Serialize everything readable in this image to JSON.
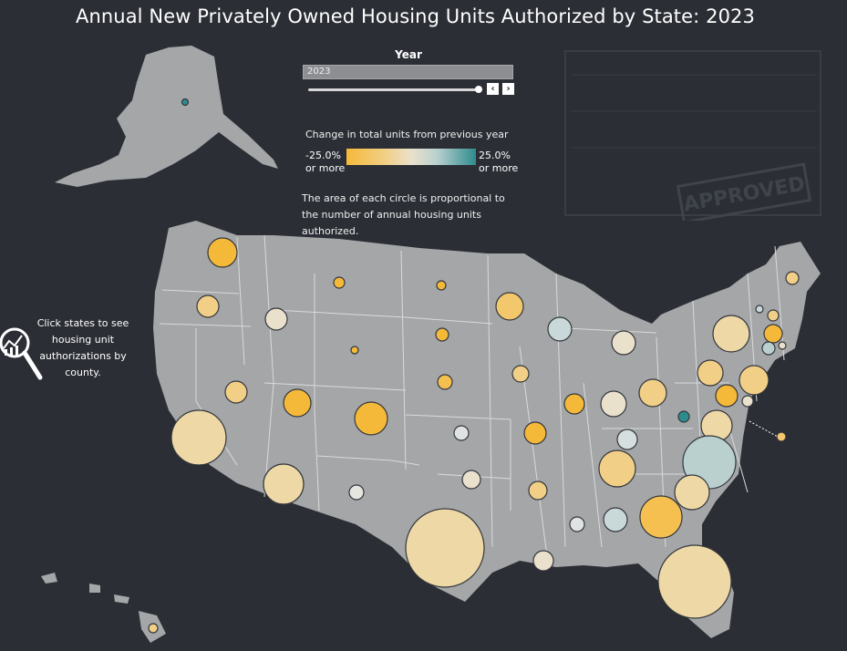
{
  "title": "Annual New Privately Owned Housing Units Authorized by State: 2023",
  "year_filter": {
    "label": "Year",
    "selected": "2023",
    "slider_fraction": 1.0
  },
  "legend": {
    "title": "Change in total units from previous year",
    "low_label": "-25.0%",
    "low_sub": "or more",
    "high_label": "25.0%",
    "high_sub": "or more",
    "colors": {
      "low": "#f5b939",
      "mid": "#eae1cc",
      "high": "#2e8b8d"
    }
  },
  "area_note": "The area of each circle is proportional to the number of annual housing units authorized.",
  "click_note": "Click states to see housing unit authorizations by county.",
  "icons": {
    "magnifier": "magnifier-chart-icon",
    "prev": "chevron-left-icon",
    "next": "chevron-right-icon"
  },
  "watermark_text": "APPROVED",
  "colors": {
    "background": "#2b2e35",
    "land": "#a4a6a8",
    "borders": "#d9dadb"
  }
}
